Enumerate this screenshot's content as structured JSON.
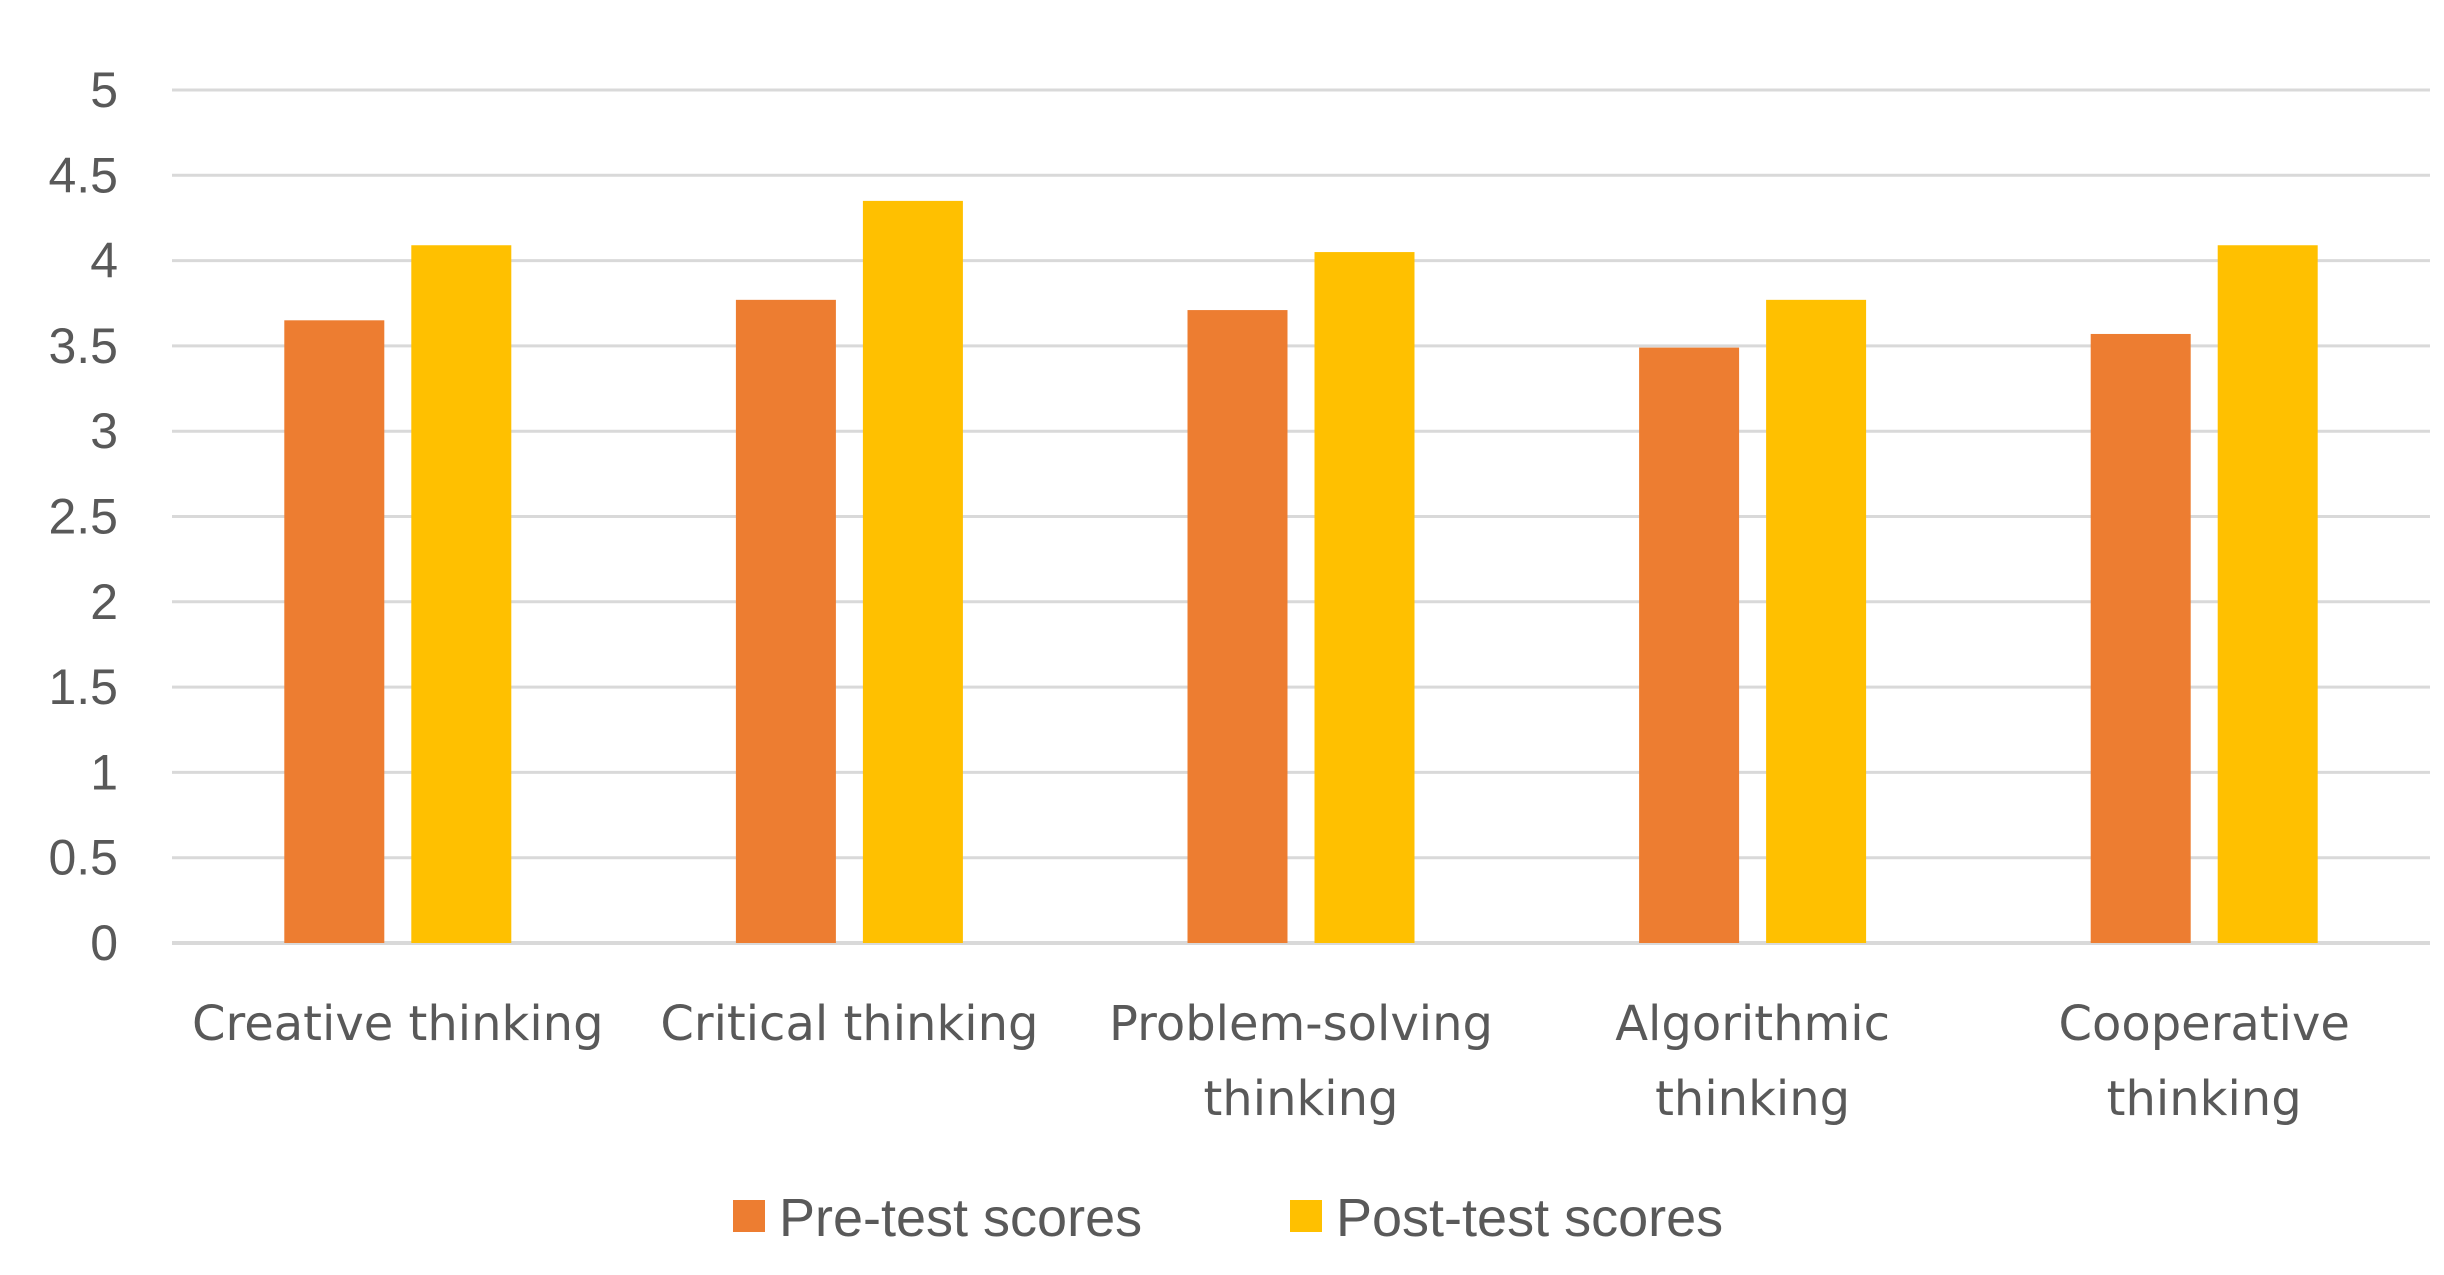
{
  "chart_data": {
    "type": "bar",
    "title": "",
    "xlabel": "",
    "ylabel": "",
    "ylim": [
      0,
      5
    ],
    "yticks": [
      0,
      0.5,
      1,
      1.5,
      2,
      2.5,
      3,
      3.5,
      4,
      4.5,
      5
    ],
    "ytick_labels": [
      "0",
      "0.5",
      "1",
      "1.5",
      "2",
      "2.5",
      "3",
      "3.5",
      "4",
      "4.5",
      "5"
    ],
    "grid": true,
    "legend_position": "bottom",
    "categories": [
      [
        "Creative thinking"
      ],
      [
        "Critical thinking"
      ],
      [
        "Problem-solving",
        "thinking"
      ],
      [
        "Algorithmic",
        "thinking"
      ],
      [
        "Cooperative",
        "thinking"
      ]
    ],
    "series": [
      {
        "name": "Pre-test scores",
        "color": "#ED7D31",
        "values": [
          3.65,
          3.77,
          3.71,
          3.49,
          3.57
        ]
      },
      {
        "name": "Post-test scores",
        "color": "#FFC000",
        "values": [
          4.09,
          4.35,
          4.05,
          3.77,
          4.09
        ]
      }
    ],
    "colors": {
      "grid": "#D9D9D9",
      "text": "#595959"
    }
  }
}
